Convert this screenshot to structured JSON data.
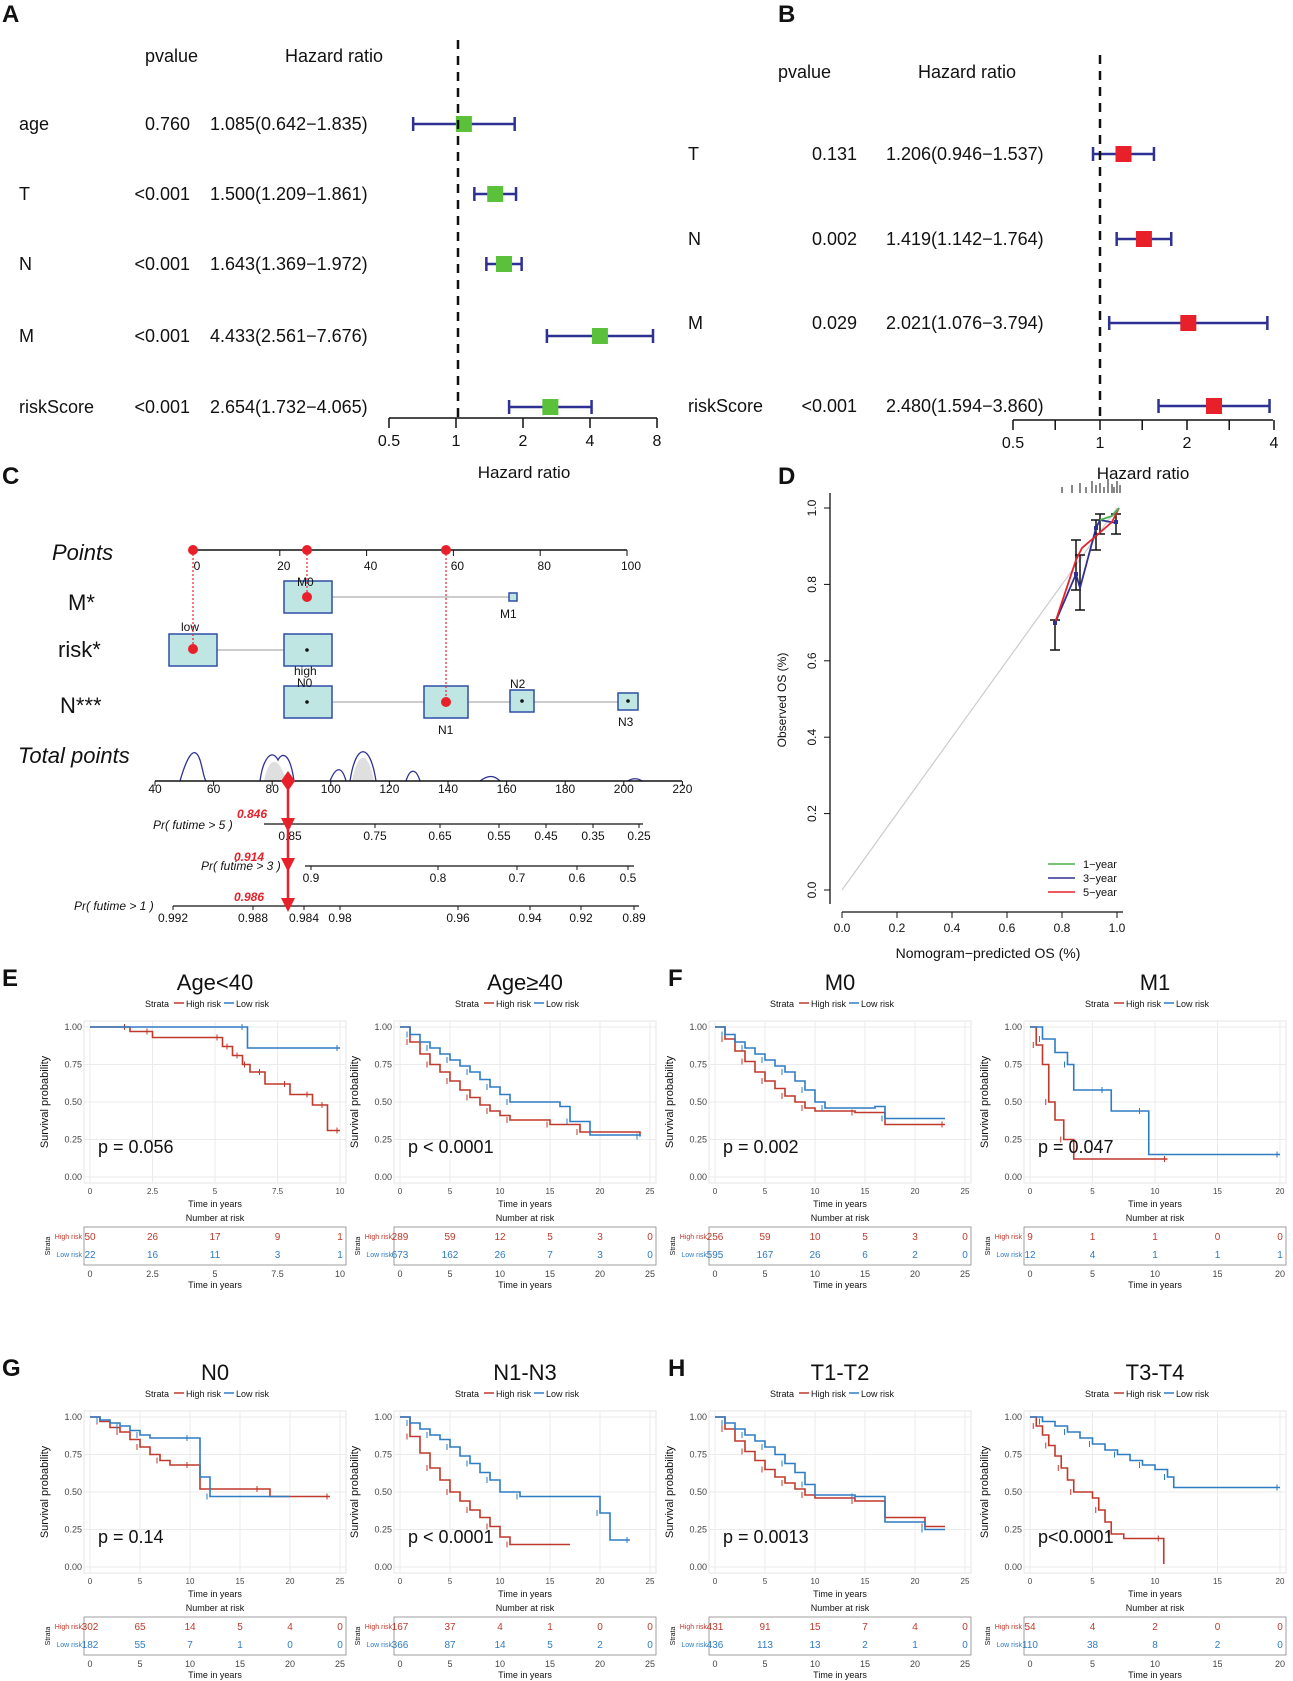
{
  "colors": {
    "green": "#5cc13a",
    "red": "#e8202a",
    "navy": "#2e3192",
    "hi": "#c0392b",
    "lo": "#2e7cc4",
    "teal": "#bfe6e3",
    "boxEdge": "#2f4fa6"
  },
  "panelA": {
    "letter": "A",
    "col_pvalue": "pvalue",
    "col_hr": "Hazard ratio",
    "xlabel": "Hazard ratio",
    "ticks": [
      "0.5",
      "1",
      "2",
      "4",
      "8"
    ],
    "rows": [
      {
        "name": "age",
        "pvalue": "0.760",
        "hr_text": "1.085(0.642−1.835)",
        "hr": 1.085,
        "lo": 0.642,
        "hi": 1.835
      },
      {
        "name": "T",
        "pvalue": "<0.001",
        "hr_text": "1.500(1.209−1.861)",
        "hr": 1.5,
        "lo": 1.209,
        "hi": 1.861
      },
      {
        "name": "N",
        "pvalue": "<0.001",
        "hr_text": "1.643(1.369−1.972)",
        "hr": 1.643,
        "lo": 1.369,
        "hi": 1.972
      },
      {
        "name": "M",
        "pvalue": "<0.001",
        "hr_text": "4.433(2.561−7.676)",
        "hr": 4.433,
        "lo": 2.561,
        "hi": 7.676
      },
      {
        "name": "riskScore",
        "pvalue": "<0.001",
        "hr_text": "2.654(1.732−4.065)",
        "hr": 2.654,
        "lo": 1.732,
        "hi": 4.065
      }
    ]
  },
  "panelB": {
    "letter": "B",
    "col_pvalue": "pvalue",
    "col_hr": "Hazard ratio",
    "xlabel": "Hazard ratio",
    "ticks": [
      "0.5",
      "1",
      "2",
      "4"
    ],
    "rows": [
      {
        "name": "T",
        "pvalue": "0.131",
        "hr_text": "1.206(0.946−1.537)",
        "hr": 1.206,
        "lo": 0.946,
        "hi": 1.537
      },
      {
        "name": "N",
        "pvalue": "0.002",
        "hr_text": "1.419(1.142−1.764)",
        "hr": 1.419,
        "lo": 1.142,
        "hi": 1.764
      },
      {
        "name": "M",
        "pvalue": "0.029",
        "hr_text": "2.021(1.076−3.794)",
        "hr": 2.021,
        "lo": 1.076,
        "hi": 3.794
      },
      {
        "name": "riskScore",
        "pvalue": "<0.001",
        "hr_text": "2.480(1.594−3.860)",
        "hr": 2.48,
        "lo": 1.594,
        "hi": 3.86
      }
    ]
  },
  "panelC": {
    "letter": "C",
    "points_label": "Points",
    "points_ticks": [
      "0",
      "20",
      "40",
      "60",
      "80",
      "100"
    ],
    "var_labels": [
      "M*",
      "risk*",
      "N***"
    ],
    "level_labels": [
      "M0",
      "M1",
      "low",
      "high",
      "N0",
      "N1",
      "N2",
      "N3"
    ],
    "total_label": "Total points",
    "total_ticks": [
      "40",
      "60",
      "80",
      "100",
      "120",
      "140",
      "160",
      "180",
      "200",
      "220"
    ],
    "surv_rows": [
      {
        "label": "Pr( futime > 5 )",
        "pred": "0.846",
        "ticks": [
          "0.85",
          "0.75",
          "0.65",
          "0.55",
          "0.45",
          "0.35",
          "0.25"
        ]
      },
      {
        "label": "Pr( futime > 3 )",
        "pred": "0.914",
        "ticks": [
          "0.9",
          "0.8",
          "0.7",
          "0.6",
          "0.5"
        ]
      },
      {
        "label": "Pr( futime > 1 )",
        "pred": "0.986",
        "ticks": [
          "0.992",
          "0.988",
          "0.984",
          "0.98",
          "0.96",
          "0.94",
          "0.92",
          "0.89"
        ]
      }
    ]
  },
  "panelD": {
    "letter": "D",
    "xlabel": "Nomogram−predicted OS (%)",
    "ylabel": "Observed OS (%)",
    "ticks": [
      "0.0",
      "0.2",
      "0.4",
      "0.6",
      "0.8",
      "1.0"
    ],
    "legend": [
      "1−year",
      "3−year",
      "5−year"
    ],
    "legend_colors": [
      "#4caf50",
      "#2e3192",
      "#e8202a"
    ]
  },
  "km_common": {
    "strata_label": "Strata",
    "high_label": "High risk",
    "low_label": "Low risk",
    "ylabel": "Survival probability",
    "xlabel": "Time in years",
    "risk_title": "Number at risk",
    "risk_strata": "Strata",
    "yticks": [
      "0.00",
      "0.25",
      "0.50",
      "0.75",
      "1.00"
    ]
  },
  "chart_data": [
    {
      "type": "line",
      "panel": "E",
      "title": "Age<40",
      "pvalue": "p = 0.056",
      "xmax": 10,
      "xticks": [
        "0",
        "2.5",
        "5",
        "7.5",
        "10"
      ],
      "risk_high": [
        "50",
        "26",
        "17",
        "9",
        "1"
      ],
      "risk_low": [
        "22",
        "16",
        "11",
        "3",
        "1"
      ],
      "high": [
        [
          0,
          1
        ],
        [
          1.5,
          1
        ],
        [
          1.6,
          0.97
        ],
        [
          2.4,
          0.97
        ],
        [
          2.5,
          0.93
        ],
        [
          5.2,
          0.93
        ],
        [
          5.3,
          0.87
        ],
        [
          5.6,
          0.87
        ],
        [
          5.7,
          0.81
        ],
        [
          6.0,
          0.81
        ],
        [
          6.1,
          0.75
        ],
        [
          6.3,
          0.75
        ],
        [
          6.4,
          0.7
        ],
        [
          6.9,
          0.7
        ],
        [
          7.0,
          0.62
        ],
        [
          7.9,
          0.62
        ],
        [
          8.0,
          0.55
        ],
        [
          8.8,
          0.55
        ],
        [
          8.9,
          0.48
        ],
        [
          9.4,
          0.48
        ],
        [
          9.5,
          0.31
        ],
        [
          10,
          0.31
        ]
      ],
      "low": [
        [
          0,
          1
        ],
        [
          6.2,
          1
        ],
        [
          6.3,
          0.86
        ],
        [
          10,
          0.86
        ]
      ]
    },
    {
      "type": "line",
      "panel": "E",
      "title": "Age≥40",
      "pvalue": "p < 0.0001",
      "xmax": 25,
      "xticks": [
        "0",
        "5",
        "10",
        "15",
        "20",
        "25"
      ],
      "risk_high": [
        "289",
        "59",
        "12",
        "5",
        "3",
        "0"
      ],
      "risk_low": [
        "673",
        "162",
        "26",
        "7",
        "3",
        "0"
      ],
      "high": [
        [
          0,
          1
        ],
        [
          1,
          0.9
        ],
        [
          2,
          0.82
        ],
        [
          3,
          0.75
        ],
        [
          4,
          0.7
        ],
        [
          5,
          0.64
        ],
        [
          6,
          0.58
        ],
        [
          7,
          0.53
        ],
        [
          8,
          0.48
        ],
        [
          9,
          0.44
        ],
        [
          10,
          0.41
        ],
        [
          11,
          0.38
        ],
        [
          14,
          0.38
        ],
        [
          15,
          0.35
        ],
        [
          17,
          0.35
        ],
        [
          18,
          0.3
        ],
        [
          24,
          0.28
        ]
      ],
      "low": [
        [
          0,
          1
        ],
        [
          1,
          0.95
        ],
        [
          2,
          0.9
        ],
        [
          3,
          0.86
        ],
        [
          4,
          0.82
        ],
        [
          5,
          0.78
        ],
        [
          6,
          0.74
        ],
        [
          7,
          0.7
        ],
        [
          8,
          0.65
        ],
        [
          9,
          0.6
        ],
        [
          10,
          0.55
        ],
        [
          11,
          0.5
        ],
        [
          16,
          0.47
        ],
        [
          17,
          0.37
        ],
        [
          19,
          0.28
        ],
        [
          24,
          0.27
        ]
      ]
    },
    {
      "type": "line",
      "panel": "F",
      "title": "M0",
      "pvalue": "p =  0.002",
      "xmax": 25,
      "xticks": [
        "0",
        "5",
        "10",
        "15",
        "20",
        "25"
      ],
      "risk_high": [
        "256",
        "59",
        "10",
        "5",
        "3",
        "0"
      ],
      "risk_low": [
        "595",
        "167",
        "26",
        "6",
        "2",
        "0"
      ],
      "high": [
        [
          0,
          1
        ],
        [
          1,
          0.92
        ],
        [
          2,
          0.84
        ],
        [
          3,
          0.77
        ],
        [
          4,
          0.7
        ],
        [
          5,
          0.64
        ],
        [
          6,
          0.59
        ],
        [
          7,
          0.54
        ],
        [
          8,
          0.5
        ],
        [
          9,
          0.46
        ],
        [
          10,
          0.44
        ],
        [
          14,
          0.43
        ],
        [
          17,
          0.35
        ],
        [
          23,
          0.35
        ]
      ],
      "low": [
        [
          0,
          1
        ],
        [
          1,
          0.95
        ],
        [
          2,
          0.9
        ],
        [
          3,
          0.86
        ],
        [
          4,
          0.82
        ],
        [
          5,
          0.78
        ],
        [
          6,
          0.74
        ],
        [
          7,
          0.7
        ],
        [
          8,
          0.64
        ],
        [
          9,
          0.58
        ],
        [
          10,
          0.5
        ],
        [
          11,
          0.46
        ],
        [
          16,
          0.47
        ],
        [
          17,
          0.39
        ],
        [
          23,
          0.39
        ]
      ]
    },
    {
      "type": "line",
      "panel": "F",
      "title": "M1",
      "pvalue": "p = 0.047",
      "xmax": 20,
      "xticks": [
        "0",
        "5",
        "10",
        "15",
        "20"
      ],
      "risk_high": [
        "9",
        "1",
        "1",
        "0",
        "0"
      ],
      "risk_low": [
        "12",
        "4",
        "1",
        "1",
        "1"
      ],
      "high": [
        [
          0,
          1
        ],
        [
          0.5,
          0.88
        ],
        [
          1,
          0.75
        ],
        [
          1.5,
          0.5
        ],
        [
          2,
          0.38
        ],
        [
          2.7,
          0.25
        ],
        [
          3.5,
          0.12
        ],
        [
          11,
          0.12
        ]
      ],
      "low": [
        [
          0,
          1
        ],
        [
          1,
          0.92
        ],
        [
          2,
          0.83
        ],
        [
          3,
          0.75
        ],
        [
          3.5,
          0.58
        ],
        [
          6,
          0.58
        ],
        [
          6.5,
          0.44
        ],
        [
          9,
          0.44
        ],
        [
          9.5,
          0.15
        ],
        [
          20,
          0.15
        ]
      ]
    },
    {
      "type": "line",
      "panel": "G",
      "title": "N0",
      "pvalue": "p =   0.14",
      "xmax": 25,
      "xticks": [
        "0",
        "5",
        "10",
        "15",
        "20",
        "25"
      ],
      "risk_high": [
        "302",
        "65",
        "14",
        "5",
        "4",
        "0"
      ],
      "risk_low": [
        "182",
        "55",
        "7",
        "1",
        "0",
        "0"
      ],
      "high": [
        [
          0,
          1
        ],
        [
          1,
          0.97
        ],
        [
          2,
          0.93
        ],
        [
          3,
          0.9
        ],
        [
          4,
          0.85
        ],
        [
          5,
          0.8
        ],
        [
          6,
          0.75
        ],
        [
          7,
          0.71
        ],
        [
          8,
          0.68
        ],
        [
          10,
          0.68
        ],
        [
          11,
          0.52
        ],
        [
          17,
          0.52
        ],
        [
          18,
          0.47
        ],
        [
          24,
          0.47
        ]
      ],
      "low": [
        [
          0,
          1
        ],
        [
          1,
          0.98
        ],
        [
          2,
          0.96
        ],
        [
          3,
          0.94
        ],
        [
          4,
          0.91
        ],
        [
          5,
          0.88
        ],
        [
          6,
          0.86
        ],
        [
          10,
          0.86
        ],
        [
          11,
          0.6
        ],
        [
          12,
          0.47
        ],
        [
          20,
          0.47
        ]
      ]
    },
    {
      "type": "line",
      "panel": "G",
      "title": "N1-N3",
      "pvalue": "p < 0.0001",
      "xmax": 25,
      "xticks": [
        "0",
        "5",
        "10",
        "15",
        "20",
        "25"
      ],
      "risk_high": [
        "167",
        "37",
        "4",
        "1",
        "0",
        "0"
      ],
      "risk_low": [
        "366",
        "87",
        "14",
        "5",
        "2",
        "0"
      ],
      "high": [
        [
          0,
          1
        ],
        [
          1,
          0.87
        ],
        [
          2,
          0.76
        ],
        [
          3,
          0.66
        ],
        [
          4,
          0.58
        ],
        [
          5,
          0.5
        ],
        [
          6,
          0.44
        ],
        [
          7,
          0.38
        ],
        [
          8,
          0.33
        ],
        [
          9,
          0.27
        ],
        [
          10,
          0.2
        ],
        [
          11,
          0.15
        ],
        [
          17,
          0.15
        ]
      ],
      "low": [
        [
          0,
          1
        ],
        [
          1,
          0.96
        ],
        [
          2,
          0.92
        ],
        [
          3,
          0.88
        ],
        [
          4,
          0.85
        ],
        [
          5,
          0.8
        ],
        [
          6,
          0.74
        ],
        [
          7,
          0.69
        ],
        [
          8,
          0.63
        ],
        [
          9,
          0.58
        ],
        [
          10,
          0.5
        ],
        [
          12,
          0.47
        ],
        [
          17,
          0.47
        ],
        [
          20,
          0.36
        ],
        [
          21,
          0.18
        ],
        [
          23,
          0.18
        ]
      ]
    },
    {
      "type": "line",
      "panel": "H",
      "title": "T1-T2",
      "pvalue": "p =  0.0013",
      "xmax": 25,
      "xticks": [
        "0",
        "5",
        "10",
        "15",
        "20",
        "25"
      ],
      "risk_high": [
        "431",
        "91",
        "15",
        "7",
        "4",
        "0"
      ],
      "risk_low": [
        "436",
        "113",
        "13",
        "2",
        "1",
        "0"
      ],
      "high": [
        [
          0,
          1
        ],
        [
          1,
          0.92
        ],
        [
          2,
          0.84
        ],
        [
          3,
          0.77
        ],
        [
          4,
          0.71
        ],
        [
          5,
          0.65
        ],
        [
          6,
          0.6
        ],
        [
          7,
          0.56
        ],
        [
          8,
          0.52
        ],
        [
          9,
          0.48
        ],
        [
          10,
          0.46
        ],
        [
          14,
          0.44
        ],
        [
          17,
          0.33
        ],
        [
          21,
          0.27
        ],
        [
          23,
          0.27
        ]
      ],
      "low": [
        [
          0,
          1
        ],
        [
          1,
          0.96
        ],
        [
          2,
          0.92
        ],
        [
          3,
          0.88
        ],
        [
          4,
          0.84
        ],
        [
          5,
          0.8
        ],
        [
          6,
          0.75
        ],
        [
          7,
          0.69
        ],
        [
          8,
          0.63
        ],
        [
          9,
          0.55
        ],
        [
          10,
          0.48
        ],
        [
          14,
          0.47
        ],
        [
          17,
          0.3
        ],
        [
          21,
          0.25
        ],
        [
          23,
          0.25
        ]
      ]
    },
    {
      "type": "line",
      "panel": "H",
      "title": "T3-T4",
      "pvalue": "p<0.0001",
      "xmax": 20,
      "xticks": [
        "0",
        "5",
        "10",
        "15",
        "20"
      ],
      "risk_high": [
        "54",
        "4",
        "2",
        "0",
        "0"
      ],
      "risk_low": [
        "110",
        "38",
        "8",
        "2",
        "0"
      ],
      "high": [
        [
          0,
          1
        ],
        [
          0.5,
          0.94
        ],
        [
          1,
          0.88
        ],
        [
          1.5,
          0.81
        ],
        [
          2,
          0.74
        ],
        [
          2.5,
          0.66
        ],
        [
          3,
          0.58
        ],
        [
          3.5,
          0.5
        ],
        [
          5,
          0.46
        ],
        [
          5.5,
          0.38
        ],
        [
          6,
          0.3
        ],
        [
          6.5,
          0.22
        ],
        [
          7.5,
          0.19
        ],
        [
          10.5,
          0.19
        ],
        [
          10.7,
          0.02
        ]
      ],
      "low": [
        [
          0,
          1
        ],
        [
          1,
          0.97
        ],
        [
          2,
          0.94
        ],
        [
          3,
          0.9
        ],
        [
          4,
          0.86
        ],
        [
          5,
          0.82
        ],
        [
          6,
          0.78
        ],
        [
          7,
          0.75
        ],
        [
          8,
          0.71
        ],
        [
          9,
          0.68
        ],
        [
          10,
          0.65
        ],
        [
          11,
          0.6
        ],
        [
          11.5,
          0.53
        ],
        [
          20,
          0.53
        ]
      ]
    }
  ]
}
